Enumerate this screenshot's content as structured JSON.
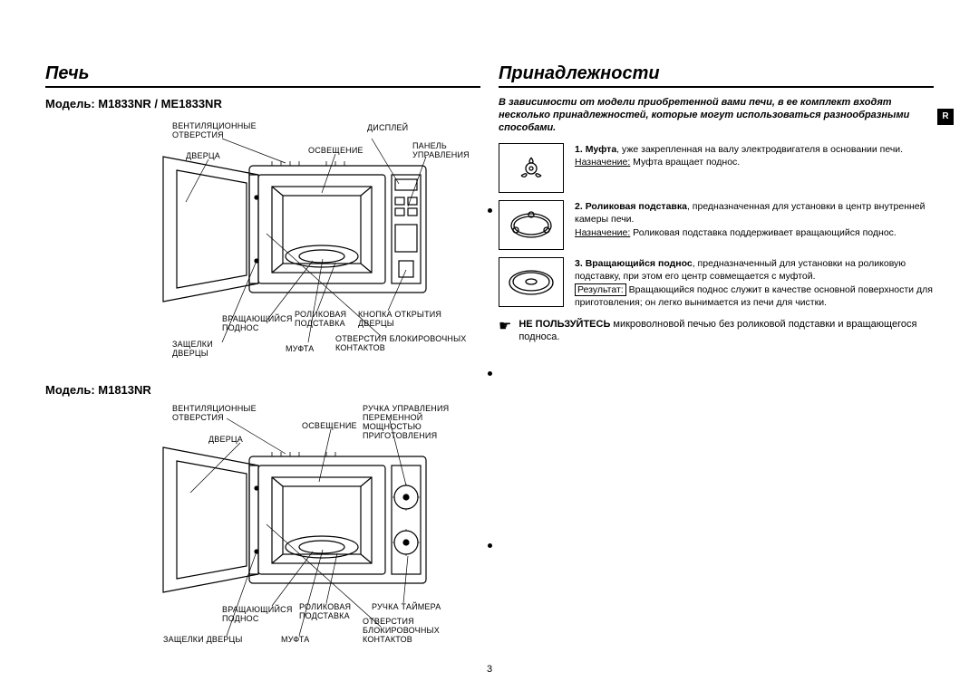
{
  "pageNumber": "3",
  "rTab": "R",
  "left": {
    "sectionTitle": "Печь",
    "model1": {
      "title": "Модель: M1833NR / ME1833NR",
      "labels": {
        "ventHoles": "ВЕНТИЛЯЦИОННЫЕ\nОТВЕРСТИЯ",
        "door": "ДВЕРЦА",
        "display": "ДИСПЛЕЙ",
        "lighting": "ОСВЕЩЕНИЕ",
        "controlPanel": "ПАНЕЛЬ\nУПРАВЛЕНИЯ",
        "rotatingTray": "ВРАЩАЮЩИЙСЯ\nПОДНОС",
        "rollerStand": "РОЛИКОВАЯ\nПОДСТАВКА",
        "openButton": "КНОПКА ОТКРЫТИЯ\nДВЕРЦЫ",
        "doorLatches": "ЗАЩЕЛКИ\nДВЕРЦЫ",
        "coupling": "МУФТА",
        "interlockHoles": "ОТВЕРСТИЯ БЛОКИРОВОЧНЫХ\nКОНТАКТОВ"
      }
    },
    "model2": {
      "title": "Модель: M1813NR",
      "labels": {
        "ventHoles": "ВЕНТИЛЯЦИОННЫЕ\nОТВЕРСТИЯ",
        "lighting": "ОСВЕЩЕНИЕ",
        "door": "ДВЕРЦА",
        "powerKnob": "РУЧКА УПРАВЛЕНИЯ\nПЕРЕМЕННОЙ\nМОЩНОСТЬЮ\nПРИГОТОВЛЕНИЯ",
        "rotatingTray": "ВРАЩАЮЩИЙСЯ\nПОДНОС",
        "rollerStand": "РОЛИКОВАЯ\nПОДСТАВКА",
        "timerKnob": "РУЧКА ТАЙМЕРА",
        "doorLatches": "ЗАЩЕЛКИ ДВЕРЦЫ",
        "coupling": "МУФТА",
        "interlockHoles": "ОТВЕРСТИЯ\nБЛОКИРОВОЧНЫХ\nКОНТАКТОВ"
      }
    }
  },
  "right": {
    "sectionTitle": "Принадлежности",
    "intro": "В зависимости от модели приобретенной вами печи, в ее комплект входят несколько принадлежностей, которые могут использоваться разнообразными способами.",
    "acc1": {
      "num": "1.",
      "bold": "Муфта",
      "rest": ", уже закрепленная на валу электродвигателя в основании печи.",
      "purposeLabel": "Назначение:",
      "purpose": "  Муфта вращает поднос."
    },
    "acc2": {
      "num": "2.",
      "bold": "Роликовая подставка",
      "rest": ", предназначенная для установки в центр внутренней камеры печи.",
      "purposeLabel": "Назначение:",
      "purpose": "  Роликовая подставка поддерживает вращающийся поднос."
    },
    "acc3": {
      "num": "3.",
      "bold": "Вращающийся поднос",
      "rest": ", предназначенный для установки на роликовую подставку, при этом его центр совмещается с муфтой.",
      "resultLabel": "Результат:",
      "result": "  Вращающийся поднос служит в качестве основной поверхности для приготовления; он легко вынимается из печи для чистки."
    },
    "warning": {
      "bold": "НЕ ПОЛЬЗУЙТЕСЬ",
      "rest": " микроволновой печью без роликовой подставки и вращающегося подноса."
    }
  }
}
